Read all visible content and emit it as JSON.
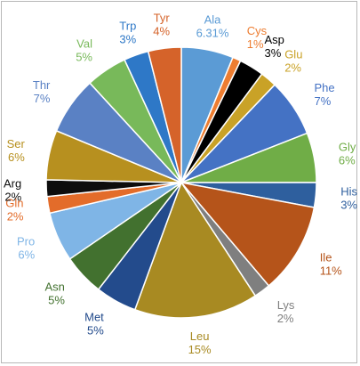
{
  "chart_data": {
    "type": "pie",
    "title": "",
    "slices": [
      {
        "name": "Ala",
        "value": 6.31,
        "value_label": "6.31%",
        "color": "#5b9bd5"
      },
      {
        "name": "Cys",
        "value": 1,
        "value_label": "1%",
        "color": "#ed7d31"
      },
      {
        "name": "Asp",
        "value": 3,
        "value_label": "3%",
        "color": "#000000"
      },
      {
        "name": "Glu",
        "value": 2,
        "value_label": "2%",
        "color": "#c9a227"
      },
      {
        "name": "Phe",
        "value": 7,
        "value_label": "7%",
        "color": "#4472c4"
      },
      {
        "name": "Gly",
        "value": 6,
        "value_label": "6%",
        "color": "#70ad47"
      },
      {
        "name": "His",
        "value": 3,
        "value_label": "3%",
        "color": "#2e5f9e"
      },
      {
        "name": "Ile",
        "value": 11,
        "value_label": "11%",
        "color": "#b5541a"
      },
      {
        "name": "Lys",
        "value": 2,
        "value_label": "2%",
        "color": "#7f7f7f"
      },
      {
        "name": "Leu",
        "value": 15,
        "value_label": "15%",
        "color": "#a88a22"
      },
      {
        "name": "Met",
        "value": 5,
        "value_label": "5%",
        "color": "#234b8c"
      },
      {
        "name": "Asn",
        "value": 5,
        "value_label": "5%",
        "color": "#42712f"
      },
      {
        "name": "Pro",
        "value": 6,
        "value_label": "6%",
        "color": "#7fb5e6"
      },
      {
        "name": "Gln",
        "value": 2,
        "value_label": "2%",
        "color": "#e36c2a"
      },
      {
        "name": "Arg",
        "value": 2,
        "value_label": "2%",
        "color": "#0d0d0d"
      },
      {
        "name": "Ser",
        "value": 6,
        "value_label": "6%",
        "color": "#b7901f"
      },
      {
        "name": "Thr",
        "value": 7,
        "value_label": "7%",
        "color": "#5a81c4"
      },
      {
        "name": "Val",
        "value": 5,
        "value_label": "5%",
        "color": "#78b95a"
      },
      {
        "name": "Trp",
        "value": 3,
        "value_label": "3%",
        "color": "#2e78c7"
      },
      {
        "name": "Tyr",
        "value": 4,
        "value_label": "4%",
        "color": "#d5632a"
      }
    ],
    "label_colors": {
      "Ala": "#5b9bd5",
      "Cys": "#ed7d31",
      "Asp": "#000000",
      "Glu": "#c9a227",
      "Phe": "#4472c4",
      "Gly": "#70ad47",
      "His": "#2e5f9e",
      "Ile": "#b5541a",
      "Lys": "#7f7f7f",
      "Leu": "#a88a22",
      "Met": "#234b8c",
      "Asn": "#42712f",
      "Pro": "#7fb5e6",
      "Gln": "#e36c2a",
      "Arg": "#0d0d0d",
      "Ser": "#b7901f",
      "Thr": "#5a81c4",
      "Val": "#78b95a",
      "Trp": "#2e78c7",
      "Tyr": "#d5632a"
    },
    "legend": "none",
    "start_angle": "12 o'clock",
    "direction": "clockwise"
  }
}
